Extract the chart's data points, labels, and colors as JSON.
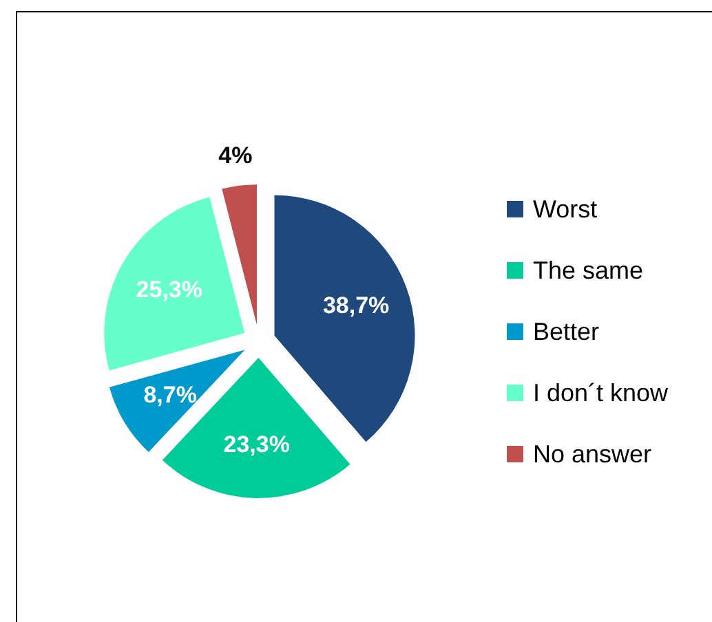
{
  "chart_data": {
    "type": "pie",
    "categories": [
      "Worst",
      "The same",
      "Better",
      "I don´t know",
      "No answer"
    ],
    "values": [
      38.7,
      23.3,
      8.7,
      25.3,
      4
    ],
    "colors": [
      "#1f497d",
      "#00cc99",
      "#0099cc",
      "#66ffcc",
      "#c0504d"
    ],
    "value_labels": [
      "38,7%",
      "23,3%",
      "8,7%",
      "25,3%",
      "4%"
    ],
    "legend": "right"
  }
}
